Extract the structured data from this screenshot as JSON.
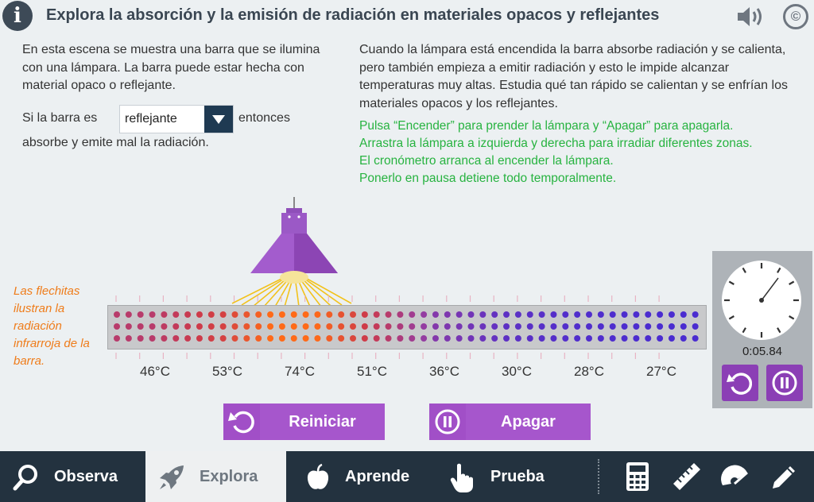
{
  "header": {
    "info_icon": "i",
    "title": "Explora la absorción y la emisión de radiación en materiales opacos y reflejantes",
    "copyright": "©"
  },
  "intro": {
    "left_text": "En esta escena se muestra una barra que se ilumina con una lámpara. La barra puede estar hecha con material opaco o reflejante.",
    "right_text": "Cuando la lámpara está encendida la barra absorbe radiación y se calienta, pero también empieza a emitir radiación y esto le impide alcanzar temperaturas muy altas. Estudia qué tan rápido se calientan y se enfrían los materiales opacos y los reflejantes.",
    "instructions": [
      "Pulsa “Encender” para prender la lámpara y “Apagar” para apagarla.",
      "Arrastra la lámpara a izquierda y derecha para irradiar diferentes zonas.",
      "El cronómetro arranca al encender la lámpara.",
      "Ponerlo en pausa detiene todo temporalmente."
    ]
  },
  "material": {
    "prefix": "Si la barra es",
    "selected": "reflejante",
    "suffix": "entonces",
    "result": "absorbe y emite mal la radiación."
  },
  "note": "Las flechitas ilustran la radiación infrarroja de la barra.",
  "temperatures": [
    "46°C",
    "53°C",
    "74°C",
    "51°C",
    "36°C",
    "30°C",
    "28°C",
    "27°C"
  ],
  "timer": {
    "elapsed": "0:05.84"
  },
  "buttons": {
    "reset": "Reiniciar",
    "toggle": "Apagar"
  },
  "nav": {
    "items": [
      {
        "label": "Observa",
        "icon": "search-icon",
        "active": false
      },
      {
        "label": "Explora",
        "icon": "rocket-icon",
        "active": true
      },
      {
        "label": "Aprende",
        "icon": "apple-icon",
        "active": false
      },
      {
        "label": "Prueba",
        "icon": "hand-pointer-icon",
        "active": false
      }
    ],
    "tools": [
      "calculator-icon",
      "ruler-icon",
      "protractor-icon",
      "pencil-icon"
    ]
  },
  "colors": {
    "accent_purple": "#a14fc7",
    "nav_bg": "#23323f",
    "instructions_green": "#27b340",
    "note_orange": "#ef7c1a"
  }
}
